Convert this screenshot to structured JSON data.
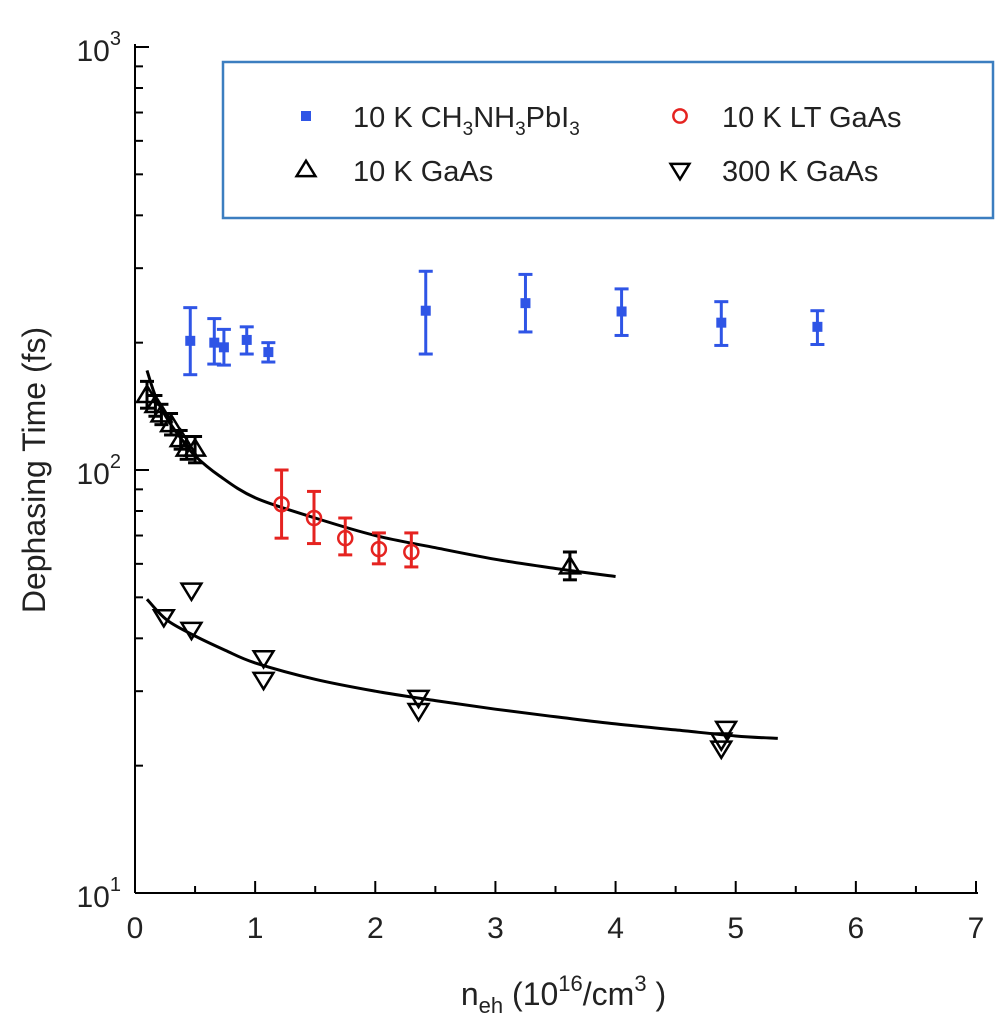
{
  "chart_data": {
    "type": "scatter",
    "title": "",
    "xlabel": "n_eh (10^16/cm^3 )",
    "xlabel_parts": {
      "base": "n",
      "sub": "eh",
      "rest1": " (10",
      "sup": "16",
      "rest2": "/cm",
      "sup2": "3",
      "rest3": " )"
    },
    "ylabel": "Dephasing Time (fs)",
    "xlim": [
      0,
      7
    ],
    "ylim": [
      10,
      1000
    ],
    "yscale": "log",
    "x_ticks": [
      "0",
      "1",
      "2",
      "3",
      "4",
      "5",
      "6",
      "7"
    ],
    "y_ticks": [
      {
        "value": 10,
        "base": "10",
        "exp": "1"
      },
      {
        "value": 100,
        "base": "10",
        "exp": "2"
      },
      {
        "value": 1000,
        "base": "10",
        "exp": "3"
      }
    ],
    "legend": {
      "placement": "top-right",
      "entries": [
        {
          "series": "ch3nh3pbi3_10k",
          "parts": [
            "10 K CH",
            "3",
            "NH",
            "3",
            "PbI",
            "3"
          ]
        },
        {
          "series": "lt_gaas_10k",
          "parts": [
            "10 K LT GaAs"
          ]
        },
        {
          "series": "gaas_10k",
          "parts": [
            "10 K GaAs"
          ]
        },
        {
          "series": "gaas_300k",
          "parts": [
            "300 K GaAs"
          ]
        }
      ]
    },
    "series": [
      {
        "id": "ch3nh3pbi3_10k",
        "name": "10 K CH3NH3PbI3",
        "marker": "filled-square",
        "color": "#2f55e6",
        "points": [
          {
            "x": 0.46,
            "y": 202,
            "lo": 168,
            "hi": 242
          },
          {
            "x": 0.66,
            "y": 200,
            "lo": 178,
            "hi": 228
          },
          {
            "x": 0.74,
            "y": 195,
            "lo": 177,
            "hi": 215
          },
          {
            "x": 0.93,
            "y": 203,
            "lo": 188,
            "hi": 218
          },
          {
            "x": 1.11,
            "y": 190,
            "lo": 180,
            "hi": 200
          },
          {
            "x": 2.42,
            "y": 238,
            "lo": 188,
            "hi": 295
          },
          {
            "x": 3.25,
            "y": 248,
            "lo": 212,
            "hi": 290
          },
          {
            "x": 4.05,
            "y": 237,
            "lo": 208,
            "hi": 268
          },
          {
            "x": 4.88,
            "y": 223,
            "lo": 197,
            "hi": 250
          },
          {
            "x": 5.68,
            "y": 218,
            "lo": 198,
            "hi": 238
          }
        ]
      },
      {
        "id": "lt_gaas_10k",
        "name": "10 K LT GaAs",
        "marker": "open-circle",
        "color": "#e52320",
        "points": [
          {
            "x": 1.22,
            "y": 83,
            "lo": 69,
            "hi": 100
          },
          {
            "x": 1.49,
            "y": 77,
            "lo": 67,
            "hi": 89
          },
          {
            "x": 1.75,
            "y": 69,
            "lo": 63,
            "hi": 77
          },
          {
            "x": 2.03,
            "y": 65,
            "lo": 60,
            "hi": 71
          },
          {
            "x": 2.3,
            "y": 64,
            "lo": 59,
            "hi": 71
          }
        ]
      },
      {
        "id": "gaas_10k",
        "name": "10 K GaAs",
        "marker": "open-triangle-up",
        "color": "#000000",
        "points": [
          {
            "x": 0.1,
            "y": 150,
            "lo": 140,
            "hi": 162
          },
          {
            "x": 0.17,
            "y": 142,
            "lo": 134,
            "hi": 150
          },
          {
            "x": 0.22,
            "y": 135,
            "lo": 128,
            "hi": 143
          },
          {
            "x": 0.3,
            "y": 128,
            "lo": 121,
            "hi": 136
          },
          {
            "x": 0.38,
            "y": 118,
            "lo": 112,
            "hi": 124
          },
          {
            "x": 0.43,
            "y": 112,
            "lo": 106,
            "hi": 120
          },
          {
            "x": 0.5,
            "y": 112,
            "lo": 104,
            "hi": 120
          },
          {
            "x": 3.62,
            "y": 59,
            "lo": 55,
            "hi": 64
          }
        ]
      },
      {
        "id": "gaas_300k",
        "name": "300 K GaAs",
        "marker": "open-triangle-down",
        "color": "#000000",
        "points": [
          {
            "x": 0.24,
            "y": 45
          },
          {
            "x": 0.47,
            "y": 42
          },
          {
            "x": 0.47,
            "y": 52
          },
          {
            "x": 1.07,
            "y": 36
          },
          {
            "x": 1.07,
            "y": 32
          },
          {
            "x": 2.36,
            "y": 29
          },
          {
            "x": 2.36,
            "y": 27
          },
          {
            "x": 4.88,
            "y": 23
          },
          {
            "x": 4.88,
            "y": 22
          },
          {
            "x": 4.92,
            "y": 24.5
          }
        ]
      }
    ],
    "fit_curves": [
      {
        "id": "fit_10k",
        "color": "#000000",
        "points": [
          [
            0.1,
            172
          ],
          [
            0.15,
            155
          ],
          [
            0.2,
            143
          ],
          [
            0.3,
            128
          ],
          [
            0.4,
            117
          ],
          [
            0.5,
            108
          ],
          [
            0.7,
            97
          ],
          [
            1.0,
            86
          ],
          [
            1.5,
            77
          ],
          [
            2.0,
            70
          ],
          [
            2.5,
            65.5
          ],
          [
            3.0,
            61.5
          ],
          [
            3.5,
            58.5
          ],
          [
            4.0,
            56
          ]
        ]
      },
      {
        "id": "fit_300k",
        "color": "#000000",
        "points": [
          [
            0.1,
            49.5
          ],
          [
            0.2,
            46
          ],
          [
            0.3,
            43.5
          ],
          [
            0.5,
            40.5
          ],
          [
            0.75,
            37.5
          ],
          [
            1.0,
            35
          ],
          [
            1.5,
            32
          ],
          [
            2.0,
            30
          ],
          [
            2.5,
            28.5
          ],
          [
            3.0,
            27.2
          ],
          [
            3.5,
            26.1
          ],
          [
            4.0,
            25.1
          ],
          [
            4.5,
            24.3
          ],
          [
            5.0,
            23.5
          ],
          [
            5.35,
            23.2
          ]
        ]
      }
    ]
  }
}
